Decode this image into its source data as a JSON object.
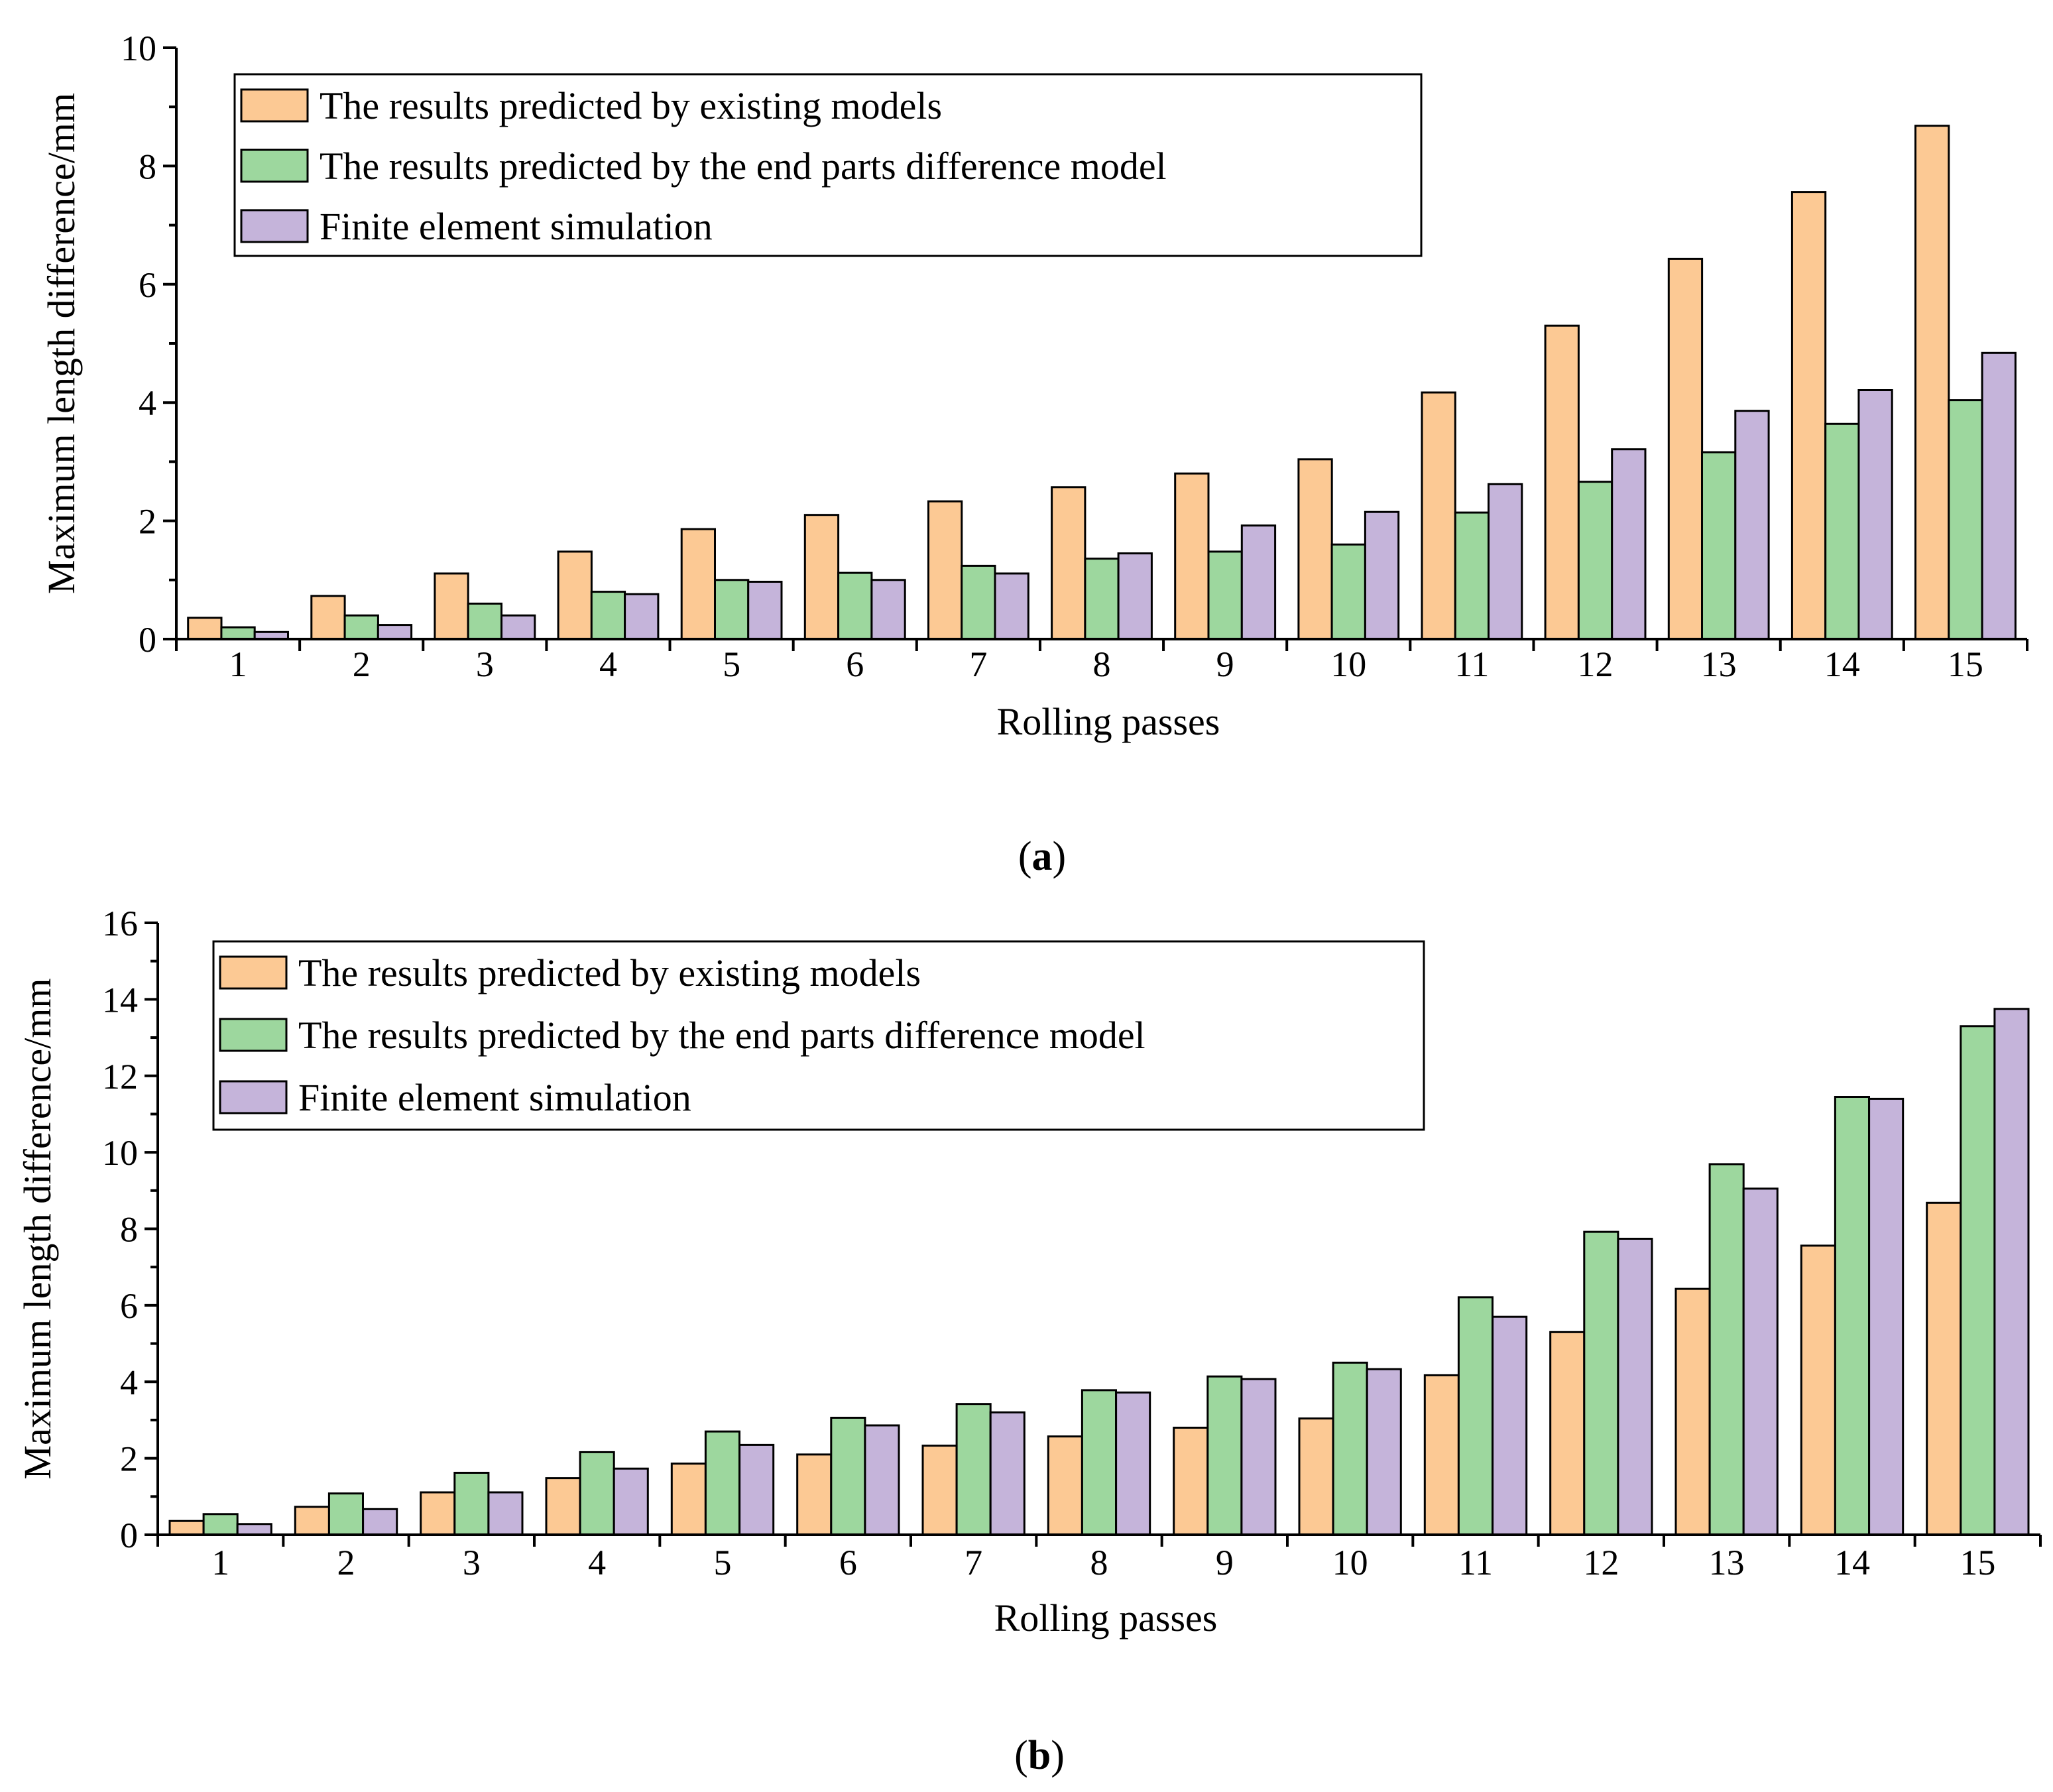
{
  "colors": {
    "existing": "#FCC994",
    "end_parts": "#9DD79E",
    "fem": "#C5B4DA",
    "axis": "#000000"
  },
  "chart_data": [
    {
      "id": "a",
      "type": "bar",
      "caption": "(a)",
      "caption_letter": "a",
      "xlabel": "Rolling passes",
      "ylabel": "Maximum length difference/mm",
      "ylim": [
        0,
        10
      ],
      "yticks": [
        0,
        2,
        4,
        6,
        8,
        10
      ],
      "categories": [
        "1",
        "2",
        "3",
        "4",
        "5",
        "6",
        "7",
        "8",
        "9",
        "10",
        "11",
        "12",
        "13",
        "14",
        "15"
      ],
      "series": [
        {
          "name": "The results predicted by existing models",
          "color_key": "existing",
          "values": [
            0.36,
            0.73,
            1.11,
            1.48,
            1.86,
            2.1,
            2.33,
            2.57,
            2.8,
            3.04,
            4.17,
            5.3,
            6.43,
            7.56,
            8.68
          ]
        },
        {
          "name": "The results predicted by the end parts difference model",
          "color_key": "end_parts",
          "values": [
            0.2,
            0.4,
            0.6,
            0.8,
            1.0,
            1.12,
            1.24,
            1.36,
            1.48,
            1.6,
            2.14,
            2.66,
            3.16,
            3.64,
            4.04
          ]
        },
        {
          "name": "Finite element simulation",
          "color_key": "fem",
          "values": [
            0.12,
            0.24,
            0.4,
            0.76,
            0.97,
            1.0,
            1.11,
            1.45,
            1.92,
            2.15,
            2.62,
            3.21,
            3.86,
            4.21,
            4.84
          ]
        }
      ]
    },
    {
      "id": "b",
      "type": "bar",
      "caption": "(b)",
      "caption_letter": "b",
      "xlabel": "Rolling passes",
      "ylabel": "Maximum length difference/mm",
      "ylim": [
        0,
        16
      ],
      "yticks": [
        0,
        2,
        4,
        6,
        8,
        10,
        12,
        14,
        16
      ],
      "categories": [
        "1",
        "2",
        "3",
        "4",
        "5",
        "6",
        "7",
        "8",
        "9",
        "10",
        "11",
        "12",
        "13",
        "14",
        "15"
      ],
      "series": [
        {
          "name": "The results predicted by existing models",
          "color_key": "existing",
          "values": [
            0.36,
            0.73,
            1.11,
            1.48,
            1.86,
            2.1,
            2.33,
            2.57,
            2.8,
            3.04,
            4.17,
            5.3,
            6.43,
            7.56,
            8.68
          ]
        },
        {
          "name": "The results predicted by the end parts difference model",
          "color_key": "end_parts",
          "values": [
            0.54,
            1.08,
            1.62,
            2.16,
            2.7,
            3.06,
            3.42,
            3.78,
            4.14,
            4.5,
            6.21,
            7.92,
            9.69,
            11.45,
            13.3
          ]
        },
        {
          "name": "Finite element simulation",
          "color_key": "fem",
          "values": [
            0.28,
            0.67,
            1.11,
            1.73,
            2.35,
            2.86,
            3.2,
            3.72,
            4.07,
            4.33,
            5.7,
            7.74,
            9.05,
            11.4,
            13.75
          ]
        }
      ]
    }
  ]
}
